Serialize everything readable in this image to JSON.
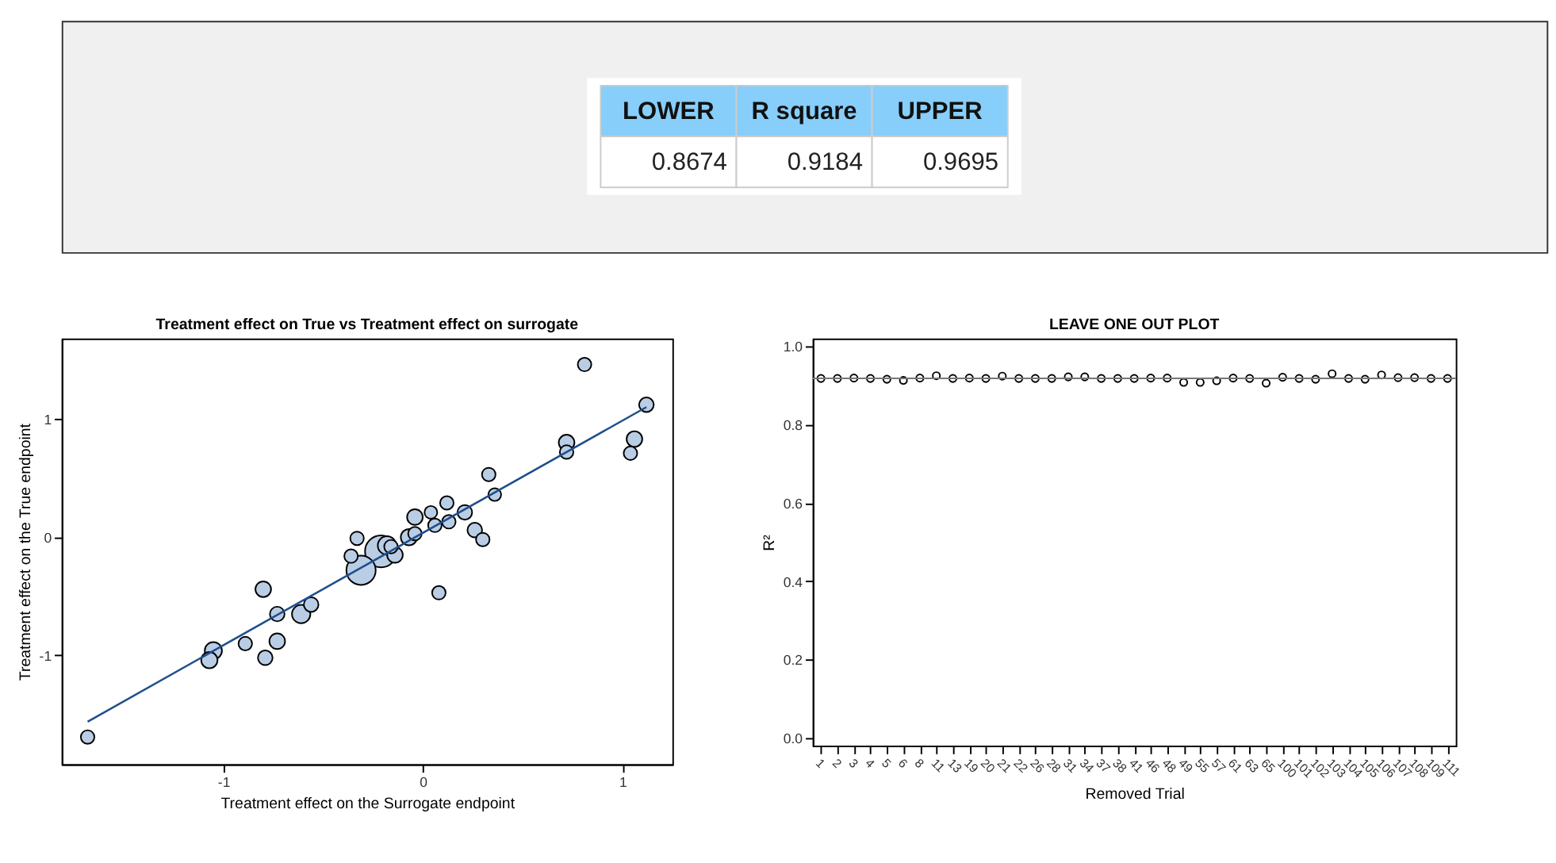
{
  "chart_data": [
    {
      "type": "other",
      "categories": [
        "LOWER",
        "R square",
        "UPPER"
      ],
      "values": [
        0.8674,
        0.9184,
        0.9695
      ],
      "data_labels": true
    },
    {
      "type": "bubble",
      "title": "Treatment effect on True vs Treatment effect on surrogate",
      "xlabel": "Treatment effect on the Surrogate endpoint",
      "ylabel": "Treatment effect on the True endpoint",
      "xlim": [
        -1.81,
        1.25
      ],
      "ylim": [
        -1.92,
        1.68
      ],
      "xticks": [
        -1,
        0,
        1
      ],
      "yticks": [
        -1,
        0,
        1
      ],
      "grid": false,
      "series": [
        {
          "type": "bubble",
          "color": "#b9cde5",
          "x": [
            -1.68,
            0.81,
            1.12,
            0.72,
            0.72,
            1.06,
            1.04,
            0.33,
            0.36,
            0.12,
            0.21,
            0.04,
            -0.04,
            0.06,
            0.13,
            0.26,
            0.3,
            -0.07,
            -0.04,
            0.08,
            -0.33,
            -0.21,
            -0.31,
            -0.18,
            -0.14,
            -0.36,
            -0.16,
            -0.8,
            -0.73,
            -0.61,
            -0.56,
            -0.73,
            -0.89,
            -0.79,
            -1.05,
            -1.07
          ],
          "values": [
            -1.69,
            1.46,
            1.12,
            0.8,
            0.72,
            0.83,
            0.71,
            0.53,
            0.36,
            0.29,
            0.21,
            0.21,
            0.17,
            0.1,
            0.13,
            0.06,
            -0.02,
            0.0,
            0.03,
            -0.47,
            -0.01,
            -0.12,
            -0.28,
            -0.07,
            -0.15,
            -0.16,
            -0.08,
            -0.44,
            -0.65,
            -0.65,
            -0.57,
            -0.88,
            -0.9,
            -1.02,
            -0.96,
            -1.04
          ],
          "sizes": [
            0.18,
            0.18,
            0.21,
            0.24,
            0.18,
            0.24,
            0.18,
            0.18,
            0.16,
            0.18,
            0.21,
            0.16,
            0.24,
            0.18,
            0.18,
            0.21,
            0.18,
            0.26,
            0.18,
            0.18,
            0.18,
            1,
            0.84,
            0.33,
            0.24,
            0.18,
            0.18,
            0.24,
            0.21,
            0.33,
            0.21,
            0.24,
            0.18,
            0.21,
            0.29,
            0.26
          ]
        },
        {
          "type": "line",
          "color": "#1f4e8c",
          "x": [
            -1.68,
            1.12
          ],
          "values": [
            -1.56,
            1.1
          ]
        }
      ]
    },
    {
      "type": "scatter",
      "title": "LEAVE ONE OUT PLOT",
      "xlabel": "Removed Trial",
      "ylabel": "R²",
      "marker": "circle",
      "grid": false,
      "categories": [
        "1",
        "2",
        "3",
        "4",
        "5",
        "6",
        "8",
        "11",
        "13",
        "19",
        "20",
        "21",
        "22",
        "26",
        "28",
        "31",
        "34",
        "37",
        "38",
        "41",
        "46",
        "48",
        "49",
        "55",
        "57",
        "61",
        "63",
        "65",
        "100",
        "101",
        "102",
        "103",
        "104",
        "105",
        "106",
        "107",
        "108",
        "109",
        "111"
      ],
      "values": [
        0.918,
        0.918,
        0.919,
        0.918,
        0.916,
        0.913,
        0.919,
        0.925,
        0.918,
        0.919,
        0.918,
        0.924,
        0.918,
        0.918,
        0.918,
        0.922,
        0.922,
        0.918,
        0.918,
        0.918,
        0.919,
        0.919,
        0.908,
        0.908,
        0.912,
        0.919,
        0.918,
        0.906,
        0.921,
        0.918,
        0.916,
        0.93,
        0.918,
        0.916,
        0.927,
        0.92,
        0.92,
        0.918,
        0.918
      ],
      "ylim": [
        -0.02,
        1.02
      ],
      "yticks": [
        {
          "value": 0,
          "label": "0.0"
        },
        0.2,
        0.4,
        0.6,
        0.8,
        {
          "value": 1,
          "label": "1.0"
        }
      ],
      "ref_lines": [
        {
          "axis": "y",
          "value": 0.9184,
          "label": null
        }
      ]
    }
  ]
}
